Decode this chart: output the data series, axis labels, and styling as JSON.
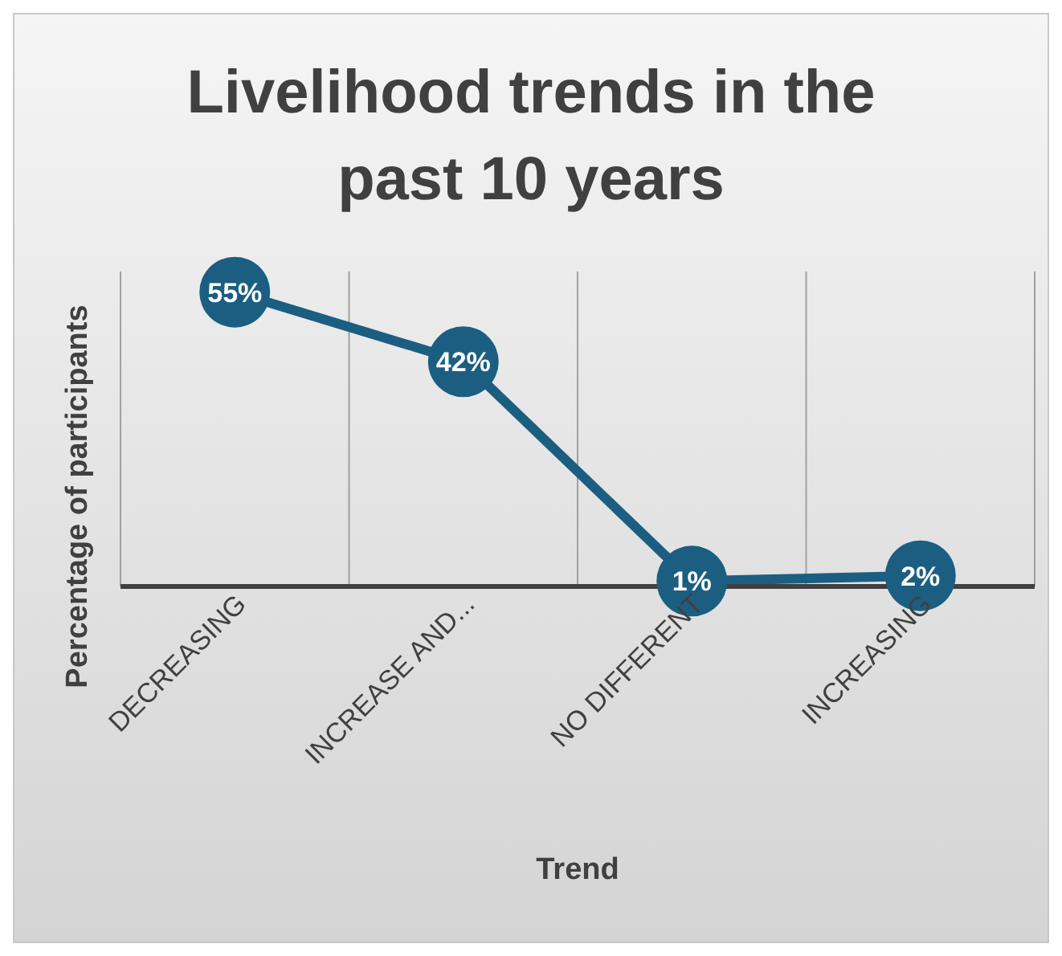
{
  "chart_data": {
    "type": "line",
    "title": "Livelihood trends in the past 10 years",
    "xlabel": "Trend",
    "ylabel": "Percentage of participants",
    "categories": [
      "DECREASING",
      "INCREASE AND...",
      "NO DIFFERENT",
      "INCREASING"
    ],
    "series": [
      {
        "color": "#1b5e82",
        "values": [
          55,
          42,
          1,
          2
        ],
        "value_labels": [
          "55%",
          "42%",
          "1%",
          "2%"
        ]
      }
    ],
    "tick_labels": "x",
    "grid": "x",
    "legend": false,
    "marker": "circle",
    "line_style": "solid"
  }
}
